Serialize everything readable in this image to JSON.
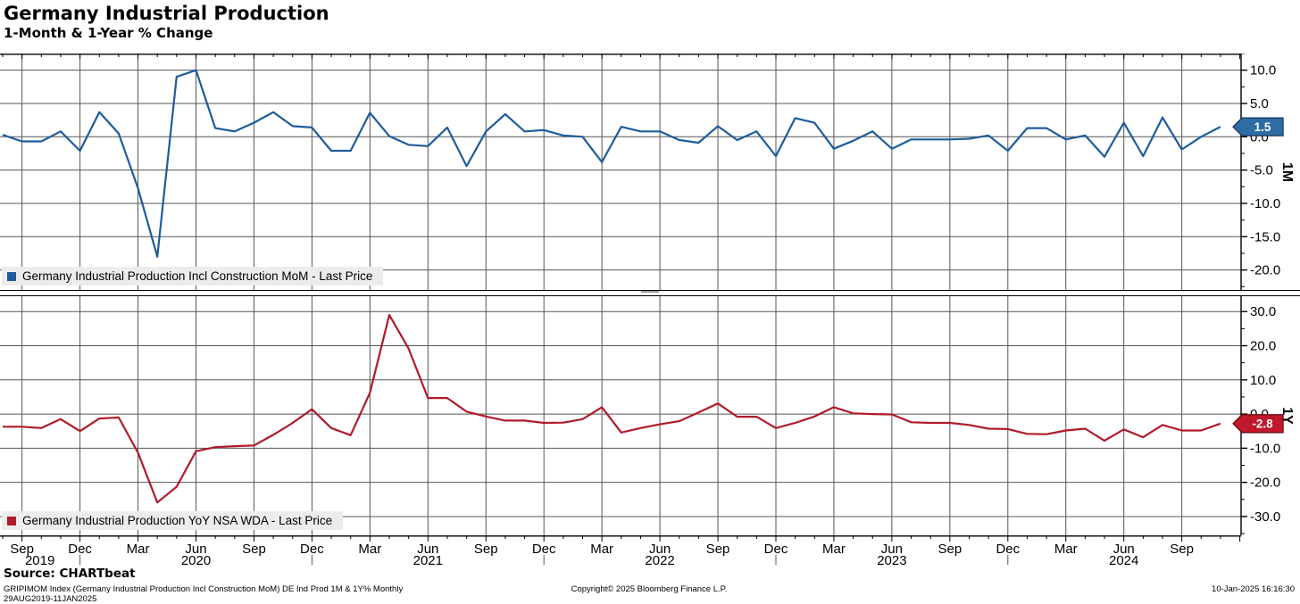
{
  "header": {
    "title": "Germany Industrial Production",
    "subtitle": "1-Month & 1-Year % Change"
  },
  "colors": {
    "blue": "#1e5c9b",
    "red": "#b01a2a",
    "badge_blue": "#2e6da4",
    "badge_blue_border": "#16365c",
    "badge_red": "#c0182c",
    "badge_red_border": "#6e0a14",
    "grid": "#555555",
    "legend_bg": "#ececec"
  },
  "xaxis": {
    "quarter_ticks": [
      {
        "i": 1,
        "label": "Sep",
        "year": "2019",
        "ydx": 20
      },
      {
        "i": 4,
        "label": "Dec",
        "stub": true
      },
      {
        "i": 7,
        "label": "Mar"
      },
      {
        "i": 10,
        "label": "Jun",
        "year": "2020"
      },
      {
        "i": 13,
        "label": "Sep"
      },
      {
        "i": 16,
        "label": "Dec",
        "stub": true
      },
      {
        "i": 19,
        "label": "Mar"
      },
      {
        "i": 22,
        "label": "Jun",
        "year": "2021"
      },
      {
        "i": 25,
        "label": "Sep"
      },
      {
        "i": 28,
        "label": "Dec",
        "stub": true
      },
      {
        "i": 31,
        "label": "Mar"
      },
      {
        "i": 34,
        "label": "Jun",
        "year": "2022"
      },
      {
        "i": 37,
        "label": "Sep"
      },
      {
        "i": 40,
        "label": "Dec",
        "stub": true
      },
      {
        "i": 43,
        "label": "Mar"
      },
      {
        "i": 46,
        "label": "Jun",
        "year": "2023"
      },
      {
        "i": 49,
        "label": "Sep"
      },
      {
        "i": 52,
        "label": "Dec",
        "stub": true
      },
      {
        "i": 55,
        "label": "Mar"
      },
      {
        "i": 58,
        "label": "Jun",
        "year": "2024"
      },
      {
        "i": 61,
        "label": "Sep"
      }
    ]
  },
  "chart_data": {
    "type": "line",
    "title": "Germany Industrial Production",
    "subtitle": "1-Month & 1-Year % Change",
    "x": [
      "2019-08",
      "2019-09",
      "2019-10",
      "2019-11",
      "2019-12",
      "2020-01",
      "2020-02",
      "2020-03",
      "2020-04",
      "2020-05",
      "2020-06",
      "2020-07",
      "2020-08",
      "2020-09",
      "2020-10",
      "2020-11",
      "2020-12",
      "2021-01",
      "2021-02",
      "2021-03",
      "2021-04",
      "2021-05",
      "2021-06",
      "2021-07",
      "2021-08",
      "2021-09",
      "2021-10",
      "2021-11",
      "2021-12",
      "2022-01",
      "2022-02",
      "2022-03",
      "2022-04",
      "2022-05",
      "2022-06",
      "2022-07",
      "2022-08",
      "2022-09",
      "2022-10",
      "2022-11",
      "2022-12",
      "2023-01",
      "2023-02",
      "2023-03",
      "2023-04",
      "2023-05",
      "2023-06",
      "2023-07",
      "2023-08",
      "2023-09",
      "2023-10",
      "2023-11",
      "2023-12",
      "2024-01",
      "2024-02",
      "2024-03",
      "2024-04",
      "2024-05",
      "2024-06",
      "2024-07",
      "2024-08",
      "2024-09",
      "2024-10",
      "2024-11"
    ],
    "charts": [
      {
        "name": "mom",
        "axis_label": "1M",
        "ylim": [
          -23.0,
          12.5
        ],
        "yticks": [
          10.0,
          5.0,
          0.0,
          -5.0,
          -10.0,
          -15.0,
          -20.0
        ],
        "minor_tick_step": 2.5,
        "last_price": "1.5",
        "legend_position": "bottom-left",
        "grid": true,
        "series": [
          {
            "name": "Germany Industrial Production Incl Construction MoM - Last Price",
            "color": "#1e5c9b",
            "values": [
              0.3,
              -0.7,
              -0.7,
              0.8,
              -2.1,
              3.7,
              0.5,
              -7.7,
              -18.0,
              9.0,
              10.0,
              1.3,
              0.8,
              2.1,
              3.7,
              1.6,
              1.4,
              -2.1,
              -2.1,
              3.6,
              0.1,
              -1.2,
              -1.4,
              1.4,
              -4.4,
              0.8,
              3.4,
              0.8,
              1.0,
              0.2,
              0.0,
              -3.8,
              1.5,
              0.8,
              0.8,
              -0.5,
              -0.9,
              1.6,
              -0.5,
              0.8,
              -2.9,
              2.8,
              2.1,
              -1.8,
              -0.6,
              0.8,
              -1.8,
              -0.4,
              -0.4,
              -0.4,
              -0.3,
              0.2,
              -2.1,
              1.3,
              1.3,
              -0.4,
              0.2,
              -3.0,
              2.1,
              -2.9,
              2.9,
              -1.9,
              0.0,
              1.5
            ]
          }
        ]
      },
      {
        "name": "yoy",
        "axis_label": "1Y",
        "ylim": [
          -35.5,
          34.5
        ],
        "yticks": [
          30.0,
          20.0,
          10.0,
          0.0,
          -10.0,
          -20.0,
          -30.0
        ],
        "minor_tick_step": 5,
        "last_price": "-2.8",
        "legend_position": "bottom-left",
        "grid": true,
        "series": [
          {
            "name": "Germany Industrial Production YoY NSA WDA - Last Price",
            "color": "#b01a2a",
            "values": [
              -3.7,
              -3.7,
              -4.1,
              -1.5,
              -5.0,
              -1.3,
              -1.0,
              -11.3,
              -25.9,
              -21.3,
              -10.9,
              -9.7,
              -9.4,
              -9.2,
              -6.1,
              -2.6,
              1.4,
              -4.1,
              -6.2,
              6.2,
              29.0,
              19.2,
              4.7,
              4.7,
              0.7,
              -0.7,
              -1.9,
              -1.9,
              -2.6,
              -2.5,
              -1.5,
              2.0,
              -5.4,
              -4.1,
              -3.0,
              -2.1,
              0.5,
              3.1,
              -0.8,
              -0.8,
              -4.1,
              -2.6,
              -0.7,
              2.0,
              0.2,
              0.0,
              -0.1,
              -2.4,
              -2.6,
              -2.6,
              -3.2,
              -4.3,
              -4.4,
              -5.8,
              -5.9,
              -4.8,
              -4.3,
              -7.8,
              -4.5,
              -6.8,
              -3.2,
              -4.8,
              -4.8,
              -2.8
            ]
          }
        ]
      }
    ]
  },
  "footer": {
    "source": "Source: CHARTbeat",
    "left": "GRIPIMOM Index (Germany Industrial Production Incl Construction MoM) DE Ind Prod 1M & 1Y%  Monthly 29AUG2019-11JAN2025",
    "center": "Copyright© 2025 Bloomberg Finance L.P.",
    "right": "10-Jan-2025 16:16:30"
  }
}
